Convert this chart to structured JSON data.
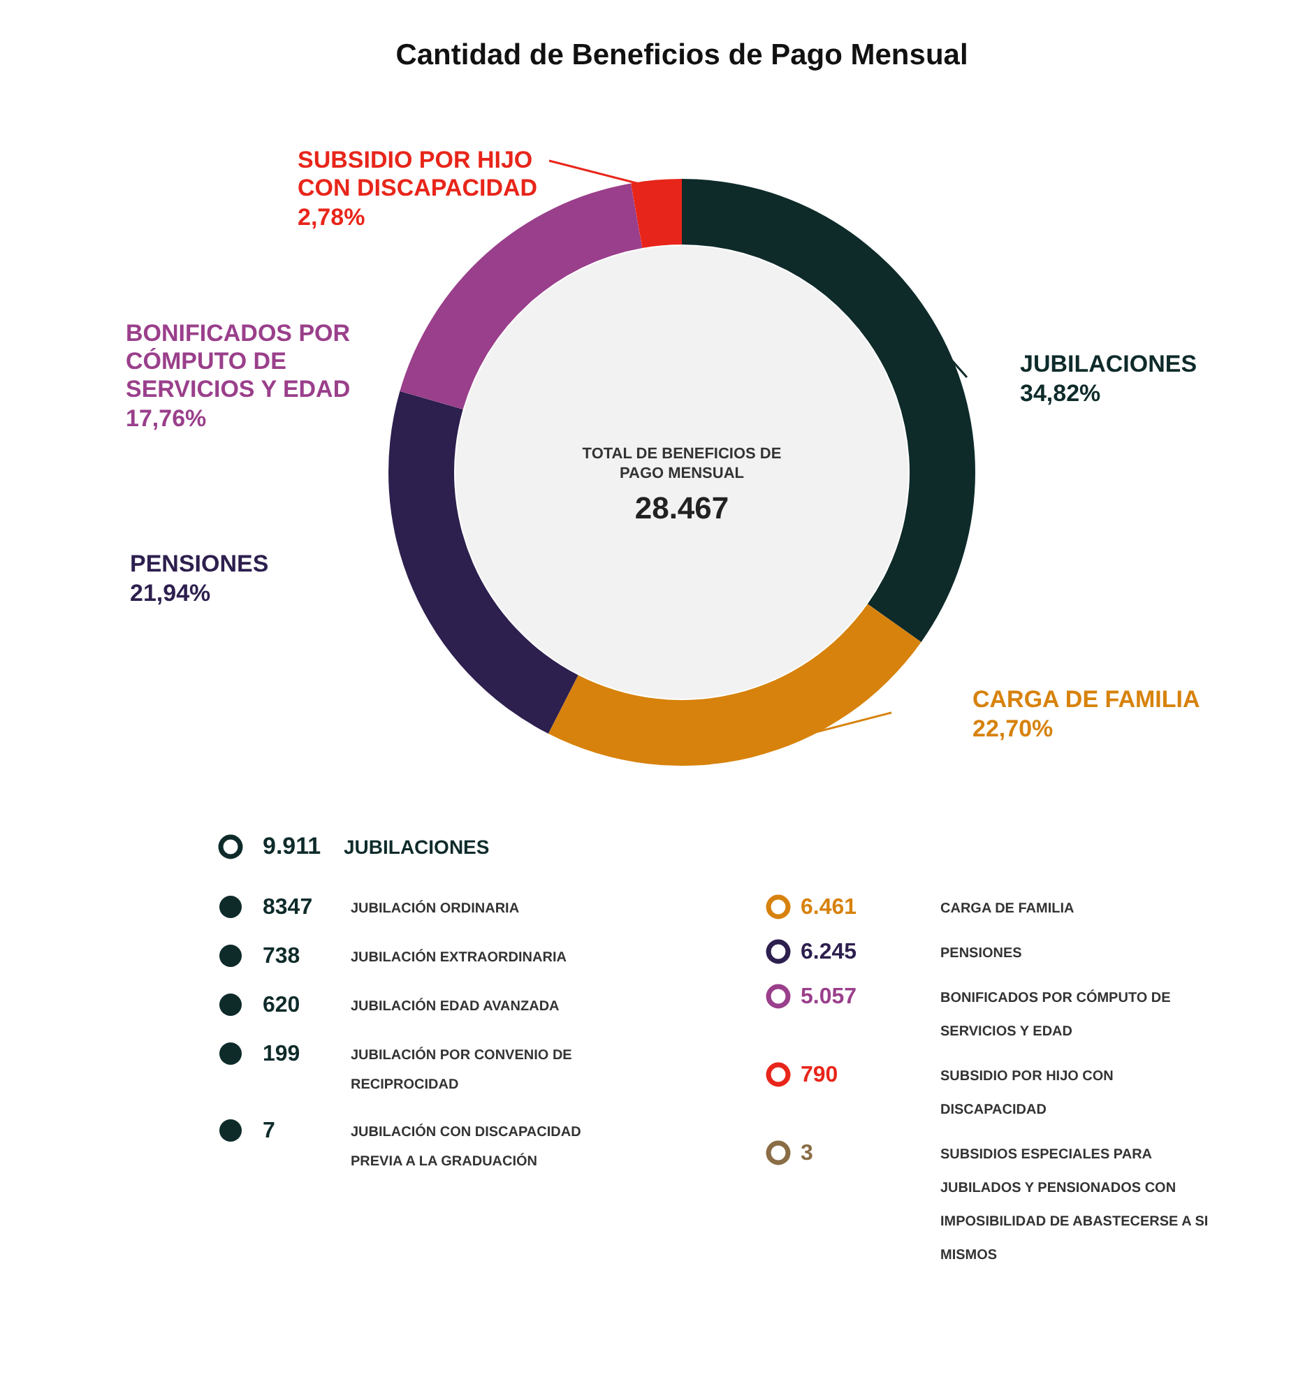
{
  "chart_data": {
    "type": "donut",
    "title": "Cantidad de Beneficios de Pago Mensual",
    "categories": [
      "JUBILACIONES",
      "CARGA DE FAMILIA",
      "PENSIONES",
      "BONIFICADOS POR CÓMPUTO DE SERVICIOS Y EDAD",
      "SUBSIDIO POR HIJO CON DISCAPACIDAD"
    ],
    "values": [
      34.82,
      22.7,
      21.94,
      17.76,
      2.78
    ],
    "value_labels": [
      "34,82%",
      "22,70%",
      "21,94%",
      "17,76%",
      "2,78%"
    ],
    "colors": [
      "#0e2b2a",
      "#d7820c",
      "#2d1f4e",
      "#9a3f8b",
      "#e8251a"
    ],
    "annotations": [
      "TOTAL DE BENEFICIOS DE PAGO MENSUAL",
      "28.467",
      "9.911",
      "JUBILACIONES",
      "8347",
      "JUBILACIÓN ORDINARIA",
      "738",
      "JUBILACIÓN EXTRAORDINARIA",
      "620",
      "JUBILACIÓN EDAD AVANZADA",
      "199",
      "JUBILACIÓN POR CONVENIO DE RECIPROCIDAD",
      "7",
      "JUBILACIÓN CON DISCAPACIDAD PREVIA A LA GRADUACIÓN",
      "6.461",
      "CARGA DE FAMILIA",
      "6.245",
      "PENSIONES",
      "5.057",
      "BONIFICADOS POR CÓMPUTO DE SERVICIOS Y EDAD",
      "790",
      "SUBSIDIO POR HIJO CON DISCAPACIDAD",
      "3",
      "SUBSIDIOS ESPECIALES PARA JUBILADOS Y PENSIONADOS CON IMPOSIBILIDAD DE ABASTECERSE A SI MISMOS"
    ]
  }
}
